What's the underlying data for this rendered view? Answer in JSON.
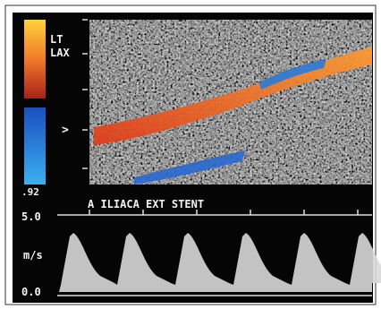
{
  "image_labels": {
    "view": [
      "LT",
      "LAX"
    ],
    "marker": ">",
    "scale_value": ".92"
  },
  "spectral": {
    "title": "A ILIACA EXT STENT",
    "y_top": "5.0",
    "unit": "m/s",
    "y_bottom": "0.0"
  }
}
